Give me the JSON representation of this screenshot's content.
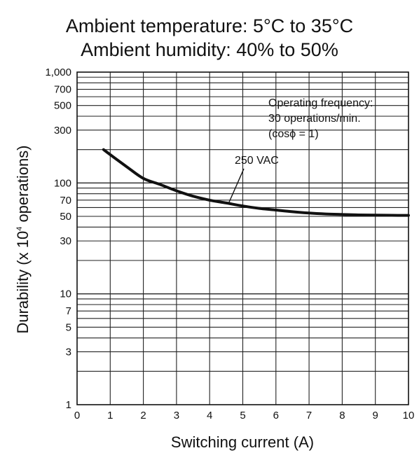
{
  "header": {
    "line1": "Ambient temperature: 5°C to 35°C",
    "line2": "Ambient humidity: 40% to 50%"
  },
  "chart_data": {
    "type": "line",
    "title": "",
    "xlabel": "Switching current (A)",
    "ylabel_main": "Durability  (x 10",
    "ylabel_exp": "4",
    "ylabel_tail": " operations)",
    "xlim": [
      0,
      10
    ],
    "ylim": [
      1,
      1000
    ],
    "y_scale": "log",
    "grid": true,
    "x_ticks": [
      "0",
      "1",
      "2",
      "3",
      "4",
      "5",
      "6",
      "7",
      "8",
      "9",
      "10"
    ],
    "y_ticks": [
      {
        "value": 1,
        "label": "1"
      },
      {
        "value": 3,
        "label": "3"
      },
      {
        "value": 5,
        "label": "5"
      },
      {
        "value": 7,
        "label": "7"
      },
      {
        "value": 10,
        "label": "10"
      },
      {
        "value": 30,
        "label": "30"
      },
      {
        "value": 50,
        "label": "50"
      },
      {
        "value": 70,
        "label": "70"
      },
      {
        "value": 100,
        "label": "100"
      },
      {
        "value": 300,
        "label": "300"
      },
      {
        "value": 500,
        "label": "500"
      },
      {
        "value": 700,
        "label": "700"
      },
      {
        "value": 1000,
        "label": "1,000"
      }
    ],
    "annotation": {
      "line1": "Operating frequency:",
      "line2": "30 operations/min.",
      "line3": "(cosϕ = 1)"
    },
    "series": [
      {
        "name": "250 VAC",
        "x": [
          0.8,
          1.0,
          1.5,
          2.0,
          2.5,
          3.0,
          3.5,
          4.0,
          4.5,
          5.0,
          5.5,
          6.0,
          6.5,
          7.0,
          7.5,
          8.0,
          8.5,
          9.0,
          9.5,
          10.0
        ],
        "y": [
          200,
          180,
          140,
          110,
          97,
          85,
          76,
          70,
          66,
          62,
          59,
          57,
          55,
          53.5,
          52.5,
          52,
          51.5,
          51.3,
          51.1,
          51
        ]
      }
    ]
  }
}
